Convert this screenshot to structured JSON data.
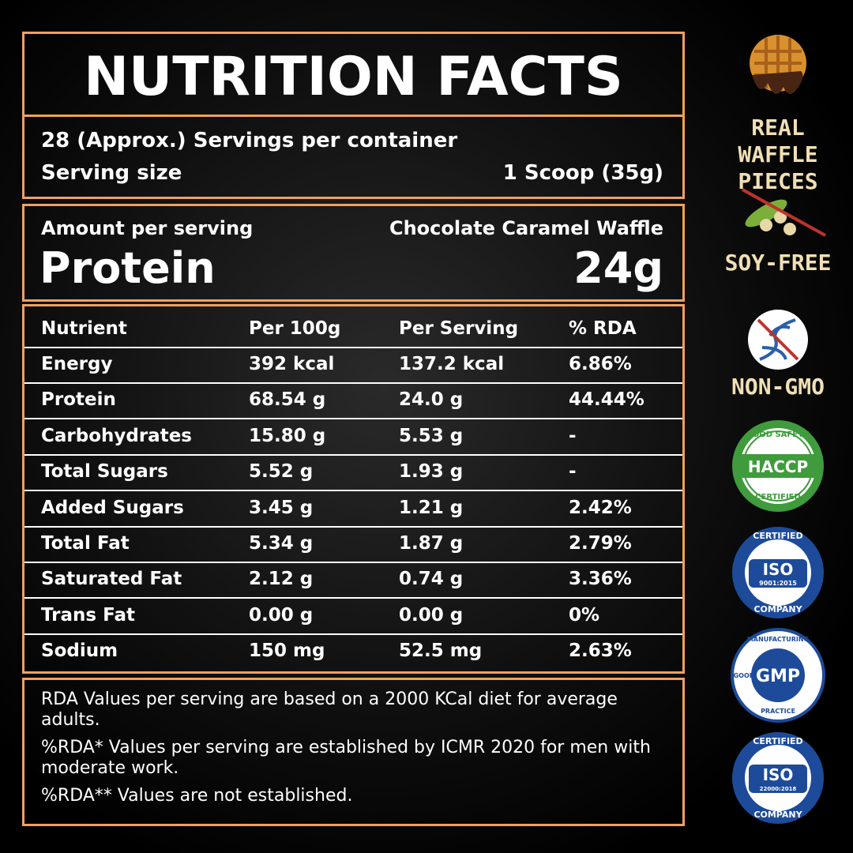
{
  "header": {
    "title": "NUTRITION FACTS"
  },
  "serving": {
    "servings": "28 (Approx.) Servings per container",
    "size_label": "Serving size",
    "size_value": "1 Scoop (35g)"
  },
  "amount": {
    "label": "Amount per serving",
    "flavor": "Chocolate Caramel Waffle",
    "nutrient": "Protein",
    "value": "24g"
  },
  "table": {
    "header": [
      "Nutrient",
      "Per 100g",
      "Per Serving",
      "% RDA"
    ],
    "rows": [
      [
        "Energy",
        "392 kcal",
        "137.2 kcal",
        "6.86%"
      ],
      [
        "Protein",
        "68.54 g",
        "24.0 g",
        "44.44%"
      ],
      [
        "Carbohydrates",
        "15.80 g",
        "5.53 g",
        "-"
      ],
      [
        "Total Sugars",
        "5.52 g",
        "1.93 g",
        "-"
      ],
      [
        "Added Sugars",
        "3.45 g",
        "1.21 g",
        "2.42%"
      ],
      [
        "Total Fat",
        "5.34 g",
        "1.87 g",
        "2.79%"
      ],
      [
        "Saturated Fat",
        "2.12 g",
        "0.74 g",
        "3.36%"
      ],
      [
        "Trans Fat",
        "0.00 g",
        "0.00 g",
        "0%"
      ],
      [
        "Sodium",
        "150 mg",
        "52.5 mg",
        "2.63%"
      ]
    ]
  },
  "footnotes": [
    "RDA Values per serving are based on a 2000 KCal diet for average adults.",
    "%RDA* Values per serving are established by ICMR 2020 for men with moderate work.",
    "%RDA** Values are not established."
  ],
  "badges": {
    "waffle": "REAL WAFFLE PIECES",
    "soy": "SOY-FREE",
    "gmo": "NON-GMO",
    "haccp": {
      "top": "FOOD SAFETY",
      "main": "HACCP",
      "bottom": "CERTIFIED"
    },
    "iso1": {
      "top": "CERTIFIED",
      "main": "ISO",
      "code": "9001:2015",
      "bottom": "COMPANY"
    },
    "gmp": {
      "top": "MANUFACTURING",
      "left": "GOOD",
      "main": "GMP",
      "bottom": "PRACTICE"
    },
    "iso2": {
      "top": "CERTIFIED",
      "main": "ISO",
      "code": "22000:2018",
      "bottom": "COMPANY"
    }
  }
}
